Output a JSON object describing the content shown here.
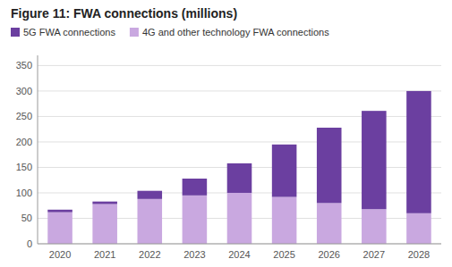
{
  "chart_data": {
    "type": "bar",
    "stacked": true,
    "title": "Figure 11: FWA connections (millions)",
    "categories": [
      "2020",
      "2021",
      "2022",
      "2023",
      "2024",
      "2025",
      "2026",
      "2027",
      "2028"
    ],
    "series": [
      {
        "name": "4G and other technology FWA connections",
        "color": "#c9a8e0",
        "values": [
          62,
          78,
          88,
          95,
          100,
          92,
          80,
          68,
          60
        ]
      },
      {
        "name": "5G FWA connections",
        "color": "#6b3fa0",
        "values": [
          5,
          5,
          16,
          33,
          58,
          103,
          148,
          193,
          240
        ]
      }
    ],
    "ylim": [
      0,
      370
    ],
    "yticks": [
      0,
      50,
      100,
      150,
      200,
      250,
      300,
      350
    ],
    "grid": true,
    "legend": "upper left"
  }
}
